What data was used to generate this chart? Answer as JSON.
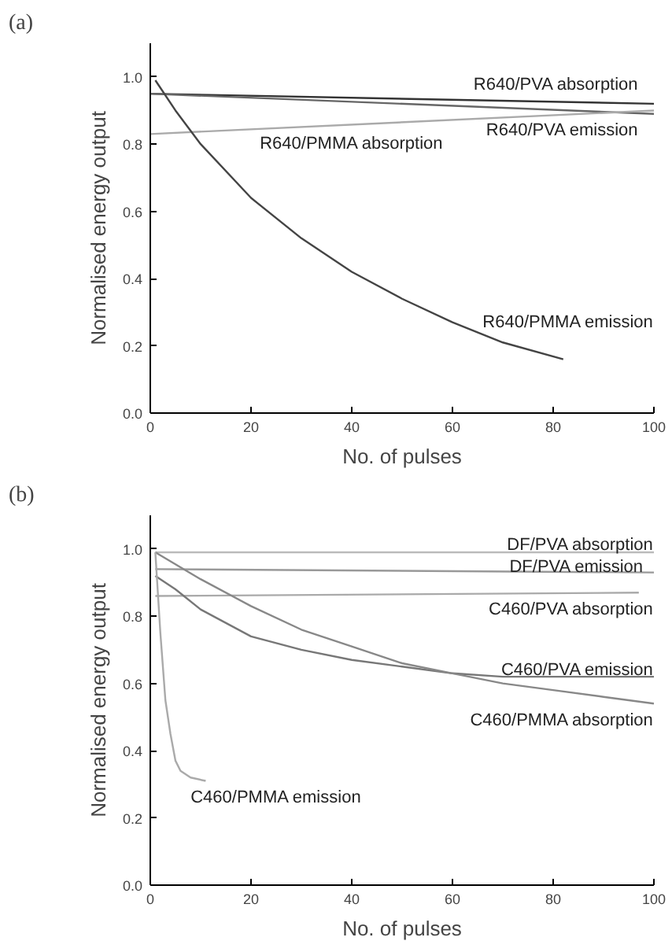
{
  "chart_data": [
    {
      "type": "line",
      "annotations": [
        "(a)"
      ],
      "xlabel": "No. of pulses",
      "ylabel": "Normalised energy output",
      "xlim": [
        0,
        100
      ],
      "ylim": [
        0,
        1.1
      ],
      "xticks": [
        0,
        20,
        40,
        60,
        80,
        100
      ],
      "yticks": [
        {
          "value": 0,
          "label": "0.0"
        },
        {
          "value": 0.2,
          "label": "0.2"
        },
        {
          "value": 0.4,
          "label": "0.4"
        },
        {
          "value": 0.6,
          "label": "0.6"
        },
        {
          "value": 0.8,
          "label": "0.8"
        },
        {
          "value": 1,
          "label": "1.0"
        }
      ],
      "grid": false,
      "series": [
        {
          "name": "R640/PVA absorption",
          "color": "#333333",
          "x": [
            0,
            100
          ],
          "values": [
            0.95,
            0.92
          ]
        },
        {
          "name": "R640/PVA emission",
          "color": "#666666",
          "x": [
            0,
            100
          ],
          "values": [
            0.95,
            0.89
          ]
        },
        {
          "name": "R640/PMMA absorption",
          "color": "#aaaaaa",
          "x": [
            0,
            100
          ],
          "values": [
            0.83,
            0.9
          ]
        },
        {
          "name": "R640/PMMA emission",
          "color": "#444444",
          "x": [
            1,
            5,
            10,
            20,
            30,
            40,
            50,
            60,
            70,
            82
          ],
          "values": [
            0.99,
            0.9,
            0.8,
            0.64,
            0.52,
            0.42,
            0.34,
            0.27,
            0.21,
            0.16
          ]
        }
      ]
    },
    {
      "type": "line",
      "annotations": [
        "(b)"
      ],
      "xlabel": "No. of pulses",
      "ylabel": "Normalised energy output",
      "xlim": [
        0,
        100
      ],
      "ylim": [
        0,
        1.1
      ],
      "xticks": [
        0,
        20,
        40,
        60,
        80,
        100
      ],
      "yticks": [
        {
          "value": 0,
          "label": "0.0"
        },
        {
          "value": 0.2,
          "label": "0.2"
        },
        {
          "value": 0.4,
          "label": "0.4"
        },
        {
          "value": 0.6,
          "label": "0.6"
        },
        {
          "value": 0.8,
          "label": "0.8"
        },
        {
          "value": 1,
          "label": "1.0"
        }
      ],
      "grid": false,
      "series": [
        {
          "name": "DF/PVA absorption",
          "color": "#bbbbbb",
          "x": [
            1,
            100
          ],
          "values": [
            0.99,
            0.99
          ]
        },
        {
          "name": "DF/PVA emission",
          "color": "#999999",
          "x": [
            1,
            100
          ],
          "values": [
            0.94,
            0.93
          ]
        },
        {
          "name": "C460/PVA absorption",
          "color": "#aaaaaa",
          "x": [
            1,
            97
          ],
          "values": [
            0.86,
            0.87
          ]
        },
        {
          "name": "C460/PVA emission",
          "color": "#777777",
          "x": [
            1,
            5,
            10,
            20,
            30,
            40,
            50,
            60,
            70,
            80,
            90,
            100
          ],
          "values": [
            0.92,
            0.88,
            0.82,
            0.74,
            0.7,
            0.67,
            0.65,
            0.63,
            0.62,
            0.62,
            0.62,
            0.62
          ]
        },
        {
          "name": "C460/PMMA absorption",
          "color": "#888888",
          "x": [
            1,
            10,
            20,
            30,
            40,
            50,
            60,
            70,
            80,
            90,
            100
          ],
          "values": [
            0.99,
            0.91,
            0.83,
            0.76,
            0.71,
            0.66,
            0.63,
            0.6,
            0.58,
            0.56,
            0.54
          ]
        },
        {
          "name": "C460/PMMA emission",
          "color": "#aaaaaa",
          "x": [
            1,
            2,
            3,
            4,
            5,
            6,
            8,
            11
          ],
          "values": [
            0.99,
            0.75,
            0.55,
            0.45,
            0.37,
            0.34,
            0.32,
            0.31
          ]
        }
      ]
    }
  ]
}
